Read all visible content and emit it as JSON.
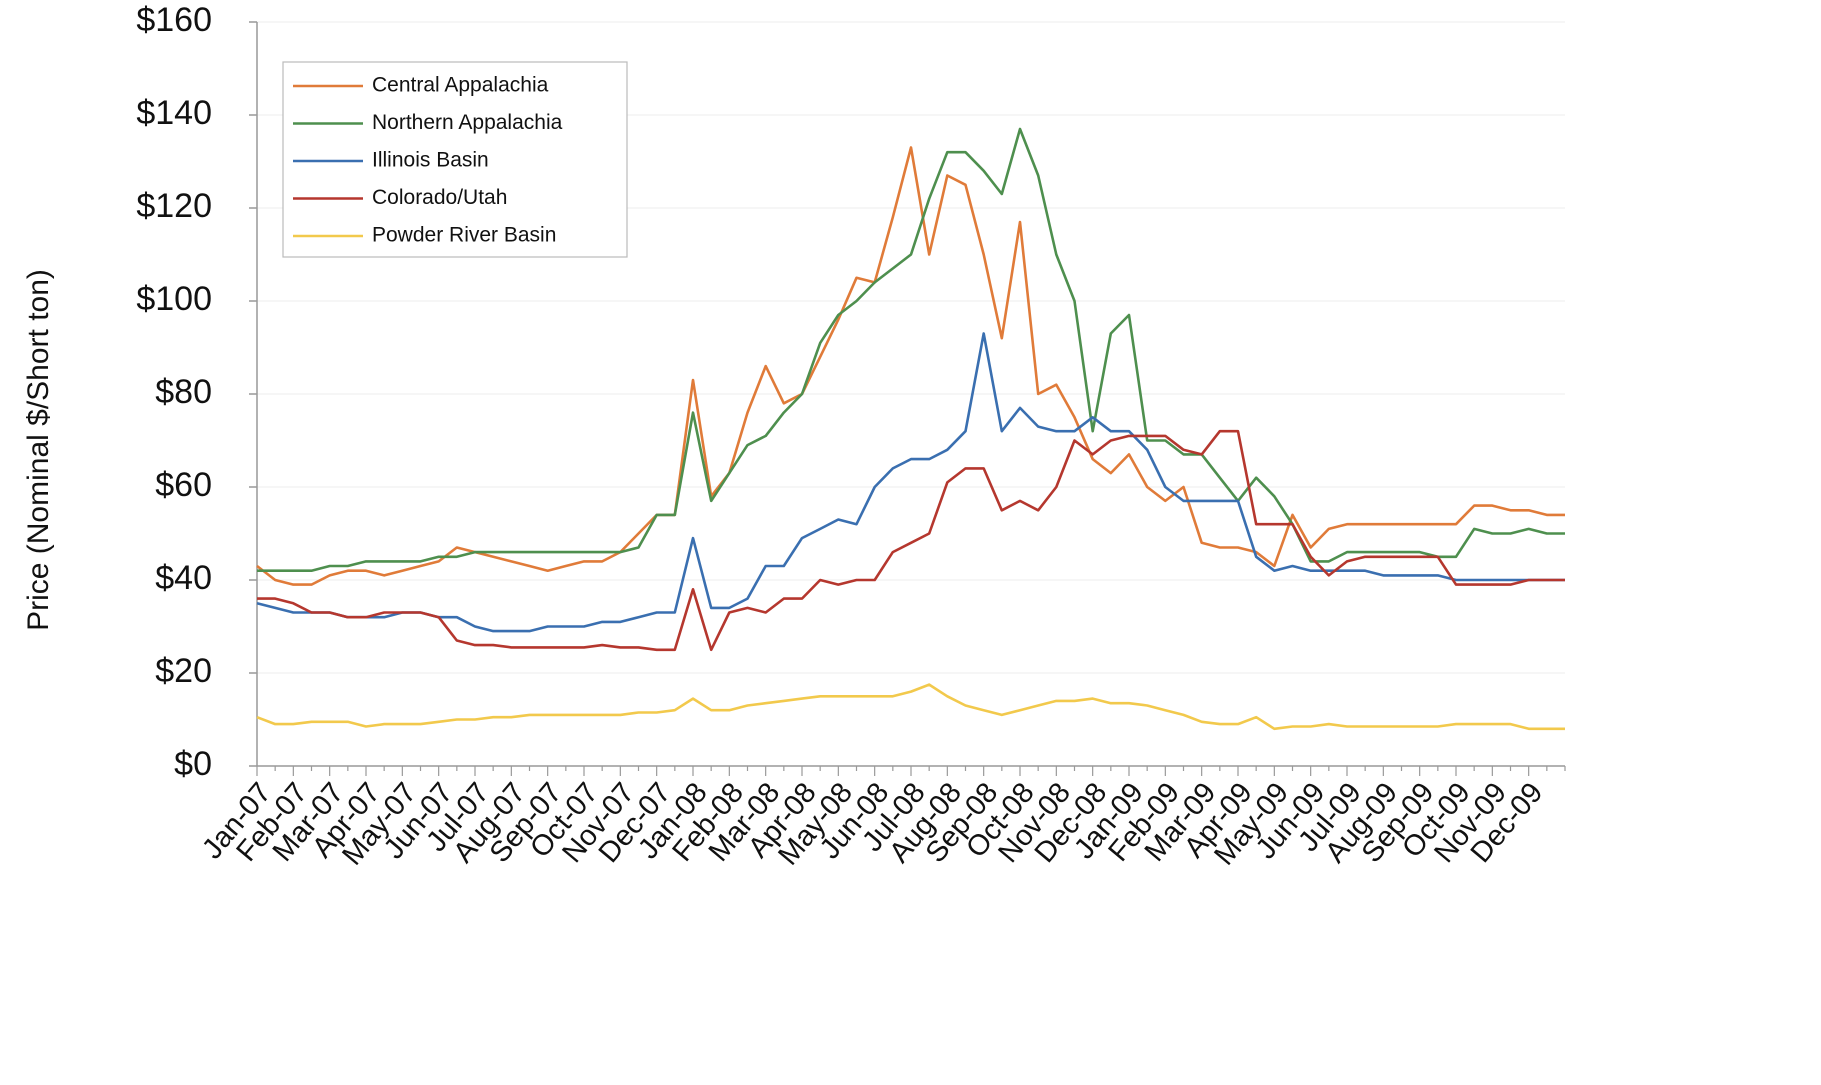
{
  "chart_data": {
    "type": "line",
    "y_label": "Price (Nominal $/Short ton)",
    "categories": [
      "Jan-07",
      null,
      "Feb-07",
      null,
      "Mar-07",
      null,
      "Apr-07",
      null,
      "May-07",
      null,
      "Jun-07",
      null,
      "Jul-07",
      null,
      "Aug-07",
      null,
      "Sep-07",
      null,
      "Oct-07",
      null,
      "Nov-07",
      null,
      "Dec-07",
      null,
      "Jan-08",
      null,
      "Feb-08",
      null,
      "Mar-08",
      null,
      "Apr-08",
      null,
      "May-08",
      null,
      "Jun-08",
      null,
      "Jul-08",
      null,
      "Aug-08",
      null,
      "Sep-08",
      null,
      "Oct-08",
      null,
      "Nov-08",
      null,
      "Dec-08",
      null,
      "Jan-09",
      null,
      "Feb-09",
      null,
      "Mar-09",
      null,
      "Apr-09",
      null,
      "May-09",
      null,
      "Jun-09",
      null,
      "Jul-09",
      null,
      "Aug-09",
      null,
      "Sep-09",
      null,
      "Oct-09",
      null,
      "Nov-09",
      null,
      "Dec-09",
      null,
      null
    ],
    "series": [
      {
        "name": "Central Appalachia",
        "color": "#e07b39",
        "values": [
          43,
          40,
          39,
          39,
          41,
          42,
          42,
          41,
          42,
          43,
          44,
          47,
          46,
          45,
          44,
          43,
          42,
          43,
          44,
          44,
          46,
          50,
          54,
          54,
          83,
          58,
          63,
          76,
          86,
          78,
          80,
          88,
          96,
          105,
          104,
          118,
          133,
          110,
          127,
          125,
          110,
          92,
          117,
          80,
          82,
          75,
          66,
          63,
          67,
          60,
          57,
          60,
          48,
          47,
          47,
          46,
          43,
          54,
          47,
          51,
          52,
          52,
          52,
          52,
          52,
          52,
          52,
          56,
          56,
          55,
          55,
          54,
          54
        ]
      },
      {
        "name": "Northern Appalachia",
        "color": "#4e8f4e",
        "values": [
          42,
          42,
          42,
          42,
          43,
          43,
          44,
          44,
          44,
          44,
          45,
          45,
          46,
          46,
          46,
          46,
          46,
          46,
          46,
          46,
          46,
          47,
          54,
          54,
          76,
          57,
          63,
          69,
          71,
          76,
          80,
          91,
          97,
          100,
          104,
          107,
          110,
          122,
          132,
          132,
          128,
          123,
          137,
          127,
          110,
          100,
          72,
          93,
          97,
          70,
          70,
          67,
          67,
          62,
          57,
          62,
          58,
          52,
          44,
          44,
          46,
          46,
          46,
          46,
          46,
          45,
          45,
          51,
          50,
          50,
          51,
          50,
          50
        ]
      },
      {
        "name": "Illinois Basin",
        "color": "#3a6fb0",
        "values": [
          35,
          34,
          33,
          33,
          33,
          32,
          32,
          32,
          33,
          33,
          32,
          32,
          30,
          29,
          29,
          29,
          30,
          30,
          30,
          31,
          31,
          32,
          33,
          33,
          49,
          34,
          34,
          36,
          43,
          43,
          49,
          51,
          53,
          52,
          60,
          64,
          66,
          66,
          68,
          72,
          93,
          72,
          77,
          73,
          72,
          72,
          75,
          72,
          72,
          68,
          60,
          57,
          57,
          57,
          57,
          45,
          42,
          43,
          42,
          42,
          42,
          42,
          41,
          41,
          41,
          41,
          40,
          40,
          40,
          40,
          40,
          40,
          40
        ]
      },
      {
        "name": "Colorado/Utah",
        "color": "#b5372e",
        "values": [
          36,
          36,
          35,
          33,
          33,
          32,
          32,
          33,
          33,
          33,
          32,
          27,
          26,
          26,
          25.5,
          25.5,
          25.5,
          25.5,
          25.5,
          26,
          25.5,
          25.5,
          25,
          25,
          38,
          25,
          33,
          34,
          33,
          36,
          36,
          40,
          39,
          40,
          40,
          46,
          48,
          50,
          61,
          64,
          64,
          55,
          57,
          55,
          60,
          70,
          67,
          70,
          71,
          71,
          71,
          68,
          67,
          72,
          72,
          52,
          52,
          52,
          45,
          41,
          44,
          45,
          45,
          45,
          45,
          45,
          39,
          39,
          39,
          39,
          40,
          40,
          40
        ]
      },
      {
        "name": "Powder River Basin",
        "color": "#f2c94c",
        "values": [
          10.5,
          9,
          9,
          9.5,
          9.5,
          9.5,
          8.5,
          9,
          9,
          9,
          9.5,
          10,
          10,
          10.5,
          10.5,
          11,
          11,
          11,
          11,
          11,
          11,
          11.5,
          11.5,
          12,
          14.5,
          12,
          12,
          13,
          13.5,
          14,
          14.5,
          15,
          15,
          15,
          15,
          15,
          16,
          17.5,
          15,
          13,
          12,
          11,
          12,
          13,
          14,
          14,
          14.5,
          13.5,
          13.5,
          13,
          12,
          11,
          9.5,
          9,
          9,
          10.5,
          8,
          8.5,
          8.5,
          9,
          8.5,
          8.5,
          8.5,
          8.5,
          8.5,
          8.5,
          9,
          9,
          9,
          9,
          8,
          8,
          8
        ]
      }
    ],
    "ylim": [
      0,
      160
    ],
    "yticks": [
      {
        "value": 0,
        "label": "$0"
      },
      {
        "value": 20,
        "label": "$20"
      },
      {
        "value": 40,
        "label": "$40"
      },
      {
        "value": 60,
        "label": "$60"
      },
      {
        "value": 80,
        "label": "$80"
      },
      {
        "value": 100,
        "label": "$100"
      },
      {
        "value": 120,
        "label": "$120"
      },
      {
        "value": 140,
        "label": "$140"
      },
      {
        "value": 160,
        "label": "$160"
      }
    ],
    "grid": true,
    "legend": "upper left"
  }
}
